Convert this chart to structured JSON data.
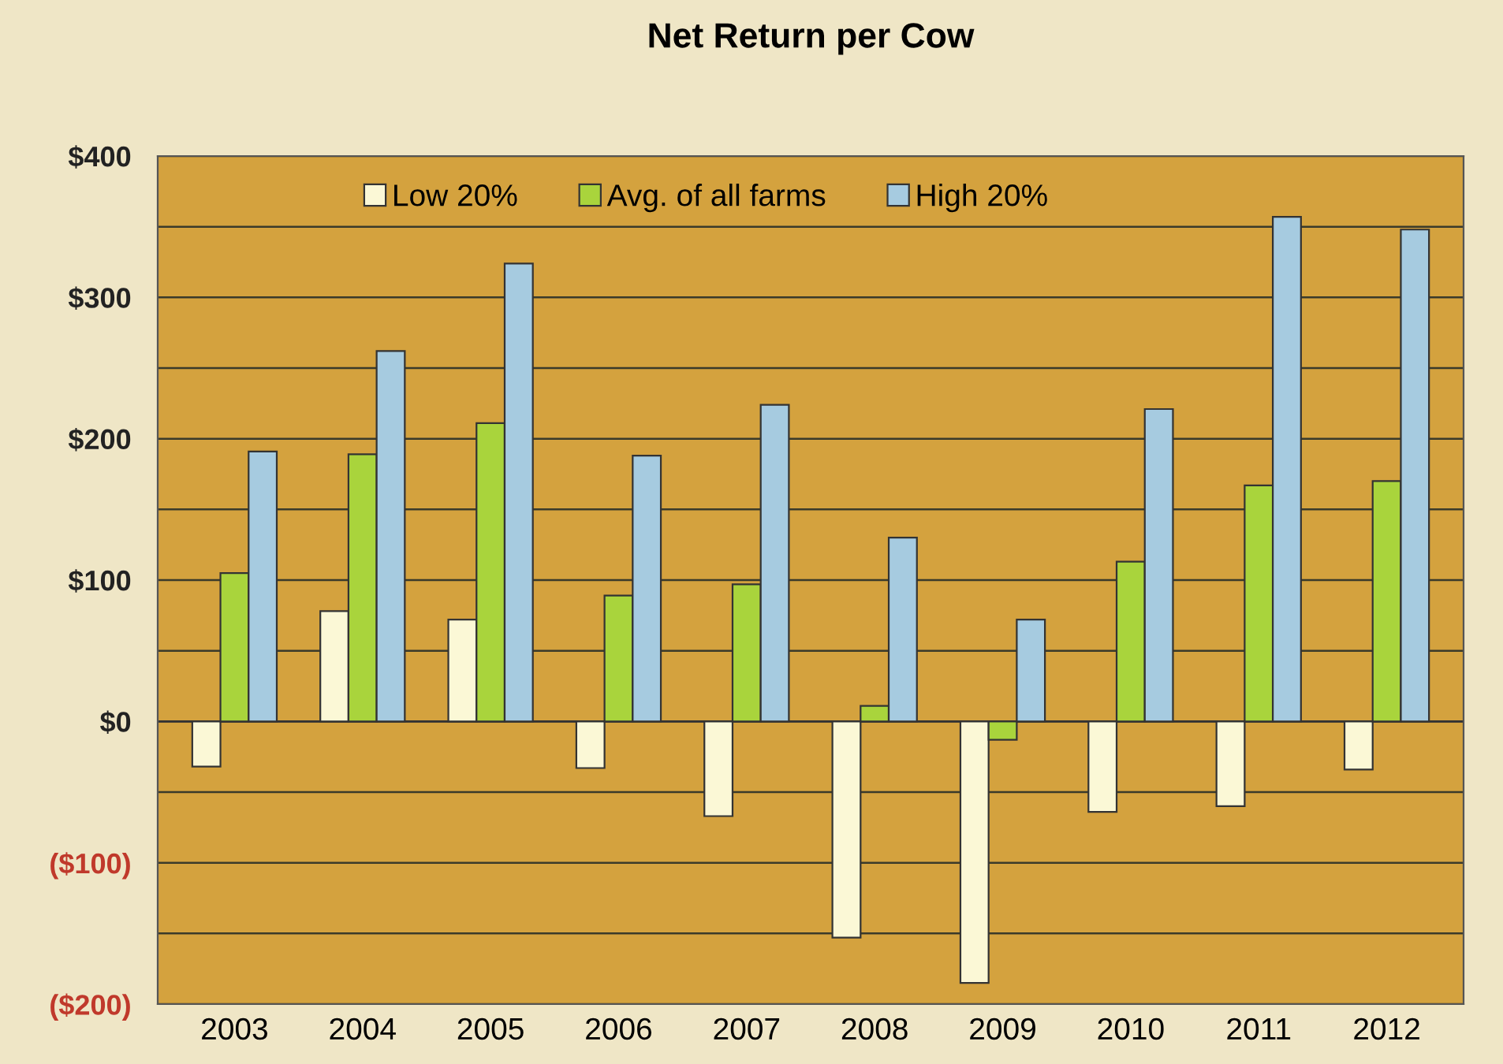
{
  "chart_data": {
    "type": "bar",
    "title": "Net Return per Cow",
    "categories": [
      "2003",
      "2004",
      "2005",
      "2006",
      "2007",
      "2008",
      "2009",
      "2010",
      "2011",
      "2012"
    ],
    "series": [
      {
        "name": "Low 20%",
        "color": "#fbf8d6",
        "values": [
          -32,
          78,
          72,
          -33,
          -67,
          -153,
          -185,
          -64,
          -60,
          -34
        ]
      },
      {
        "name": "Avg. of all farms",
        "color": "#a9d43c",
        "values": [
          105,
          189,
          211,
          89,
          97,
          11,
          -13,
          113,
          167,
          170
        ]
      },
      {
        "name": "High 20%",
        "color": "#a6cbe0",
        "values": [
          191,
          262,
          324,
          188,
          224,
          130,
          72,
          221,
          357,
          348
        ]
      }
    ],
    "ylim": [
      -200,
      400
    ],
    "yticks": [
      {
        "value": -200,
        "label": "($200)"
      },
      {
        "value": -150,
        "label": null
      },
      {
        "value": -100,
        "label": "($100)"
      },
      {
        "value": -50,
        "label": null
      },
      {
        "value": 0,
        "label": "$0"
      },
      {
        "value": 50,
        "label": null
      },
      {
        "value": 100,
        "label": "$100"
      },
      {
        "value": 150,
        "label": null
      },
      {
        "value": 200,
        "label": "$200"
      },
      {
        "value": 250,
        "label": null
      },
      {
        "value": 300,
        "label": "$300"
      },
      {
        "value": 350,
        "label": null
      },
      {
        "value": 400,
        "label": "$400"
      }
    ],
    "grid": "y",
    "legend": "top"
  }
}
